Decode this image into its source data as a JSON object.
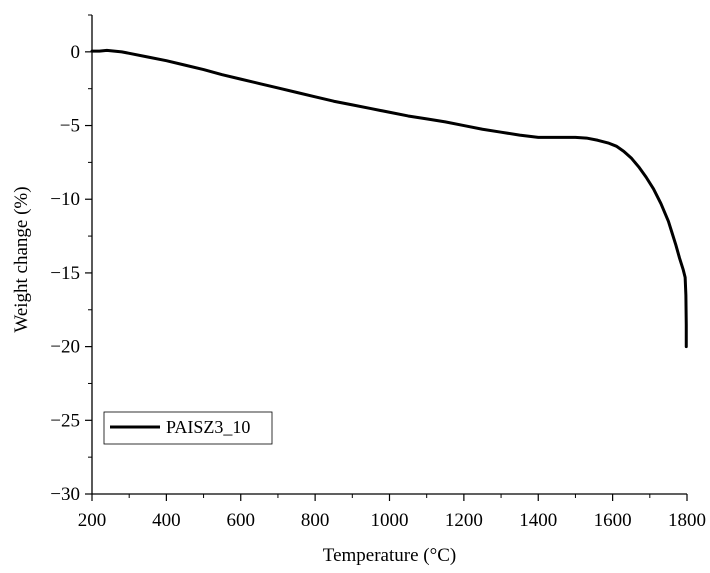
{
  "chart_data": {
    "type": "line",
    "xlabel": "Temperature (°C)",
    "ylabel": "Weight change (%)",
    "xlim": [
      200,
      1800
    ],
    "ylim": [
      -30,
      2.5
    ],
    "xticks": [
      200,
      400,
      600,
      800,
      1000,
      1200,
      1400,
      1600,
      1800
    ],
    "xtick_labels": [
      "200",
      "400",
      "600",
      "800",
      "1000",
      "1200",
      "1400",
      "1600",
      "1800"
    ],
    "yticks": [
      0,
      -5,
      -10,
      -15,
      -20,
      -25,
      -30
    ],
    "ytick_labels": [
      "0",
      "−5",
      "−10",
      "−15",
      "−20",
      "−25",
      "−30"
    ],
    "grid": false,
    "legend_position": "bottom-left",
    "series": [
      {
        "name": "PAISZ3_10",
        "color": "#000000",
        "x": [
          200,
          220,
          240,
          260,
          280,
          300,
          350,
          400,
          450,
          500,
          550,
          600,
          650,
          700,
          750,
          800,
          850,
          900,
          950,
          1000,
          1050,
          1100,
          1150,
          1200,
          1250,
          1300,
          1350,
          1400,
          1450,
          1500,
          1530,
          1560,
          1590,
          1610,
          1630,
          1650,
          1670,
          1690,
          1710,
          1730,
          1750,
          1760,
          1770,
          1780,
          1790,
          1795,
          1797,
          1798,
          1798
        ],
        "y": [
          0.05,
          0.05,
          0.1,
          0.05,
          0.0,
          -0.1,
          -0.35,
          -0.6,
          -0.9,
          -1.2,
          -1.55,
          -1.85,
          -2.15,
          -2.45,
          -2.75,
          -3.05,
          -3.35,
          -3.6,
          -3.85,
          -4.1,
          -4.35,
          -4.55,
          -4.75,
          -5.0,
          -5.25,
          -5.45,
          -5.65,
          -5.8,
          -5.8,
          -5.8,
          -5.85,
          -6.0,
          -6.2,
          -6.4,
          -6.75,
          -7.2,
          -7.8,
          -8.5,
          -9.3,
          -10.3,
          -11.5,
          -12.3,
          -13.1,
          -14.0,
          -14.8,
          -15.3,
          -16.5,
          -18.5,
          -20.0
        ]
      }
    ]
  }
}
